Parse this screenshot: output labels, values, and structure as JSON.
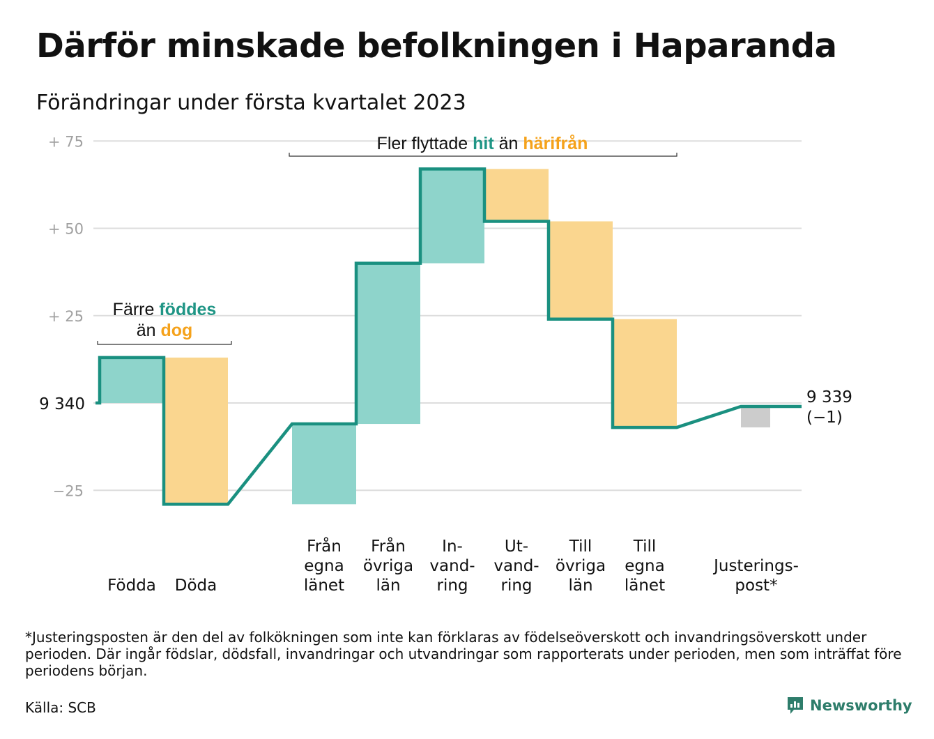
{
  "title": "Därför minskade befolkningen i Haparanda",
  "subtitle": "Förändringar under första kvartalet 2023",
  "footnote": "*Justeringsposten är den del av folkökningen som inte kan förklaras av födelseöverskott och invandringsöverskott under perioden. Där ingår födslar, dödsfall, invandringar och utvandringar som rapporterats under perioden, men som inträffat före periodens början.",
  "source": "Källa: SCB",
  "brand": "Newsworthy",
  "colors": {
    "increase": "#8ed4cb",
    "decrease": "#fad68f",
    "adjustment": "#cccccc",
    "line": "#1a9080",
    "teal_text": "#1f9585",
    "orange_text": "#f5a21b",
    "grid": "#dddddd",
    "tick": "#a0a0a0"
  },
  "annotations": {
    "births": {
      "line1_prefix": "Färre ",
      "line1_highlight": "föddes",
      "line2_prefix": "än ",
      "line2_highlight": "dog"
    },
    "migration": {
      "prefix": "Fler flyttade ",
      "highlight1": "hit",
      "middle": " än ",
      "highlight2": "härifrån"
    }
  },
  "chart_data": {
    "type": "waterfall",
    "start_label": "9 340",
    "end_label": "9 339",
    "end_change_label": "(−1)",
    "start_value": 9340,
    "end_value": 9339,
    "y_ticks": [
      {
        "value": 75,
        "label": "+ 75"
      },
      {
        "value": 50,
        "label": "+ 50"
      },
      {
        "value": 25,
        "label": "+ 25"
      },
      {
        "value": -25,
        "label": "−25"
      }
    ],
    "ylim": [
      -29,
      77
    ],
    "steps": [
      {
        "label": [
          "Födda"
        ],
        "value": 13,
        "kind": "increase"
      },
      {
        "label": [
          "Döda"
        ],
        "value": -42,
        "kind": "decrease"
      },
      {
        "label": [
          "Från",
          "egna",
          "länet"
        ],
        "value": 23,
        "kind": "increase"
      },
      {
        "label": [
          "Från",
          "övriga",
          "län"
        ],
        "value": 46,
        "kind": "increase"
      },
      {
        "label": [
          "In-",
          "vand-",
          "ring"
        ],
        "value": 27,
        "kind": "increase"
      },
      {
        "label": [
          "Ut-",
          "vand-",
          "ring"
        ],
        "value": -15,
        "kind": "decrease"
      },
      {
        "label": [
          "Till",
          "övriga",
          "län"
        ],
        "value": -28,
        "kind": "decrease"
      },
      {
        "label": [
          "Till",
          "egna",
          "länet"
        ],
        "value": -31,
        "kind": "decrease"
      },
      {
        "label": [
          "Justerings-",
          "post*"
        ],
        "value": 6,
        "kind": "adjustment"
      }
    ]
  }
}
